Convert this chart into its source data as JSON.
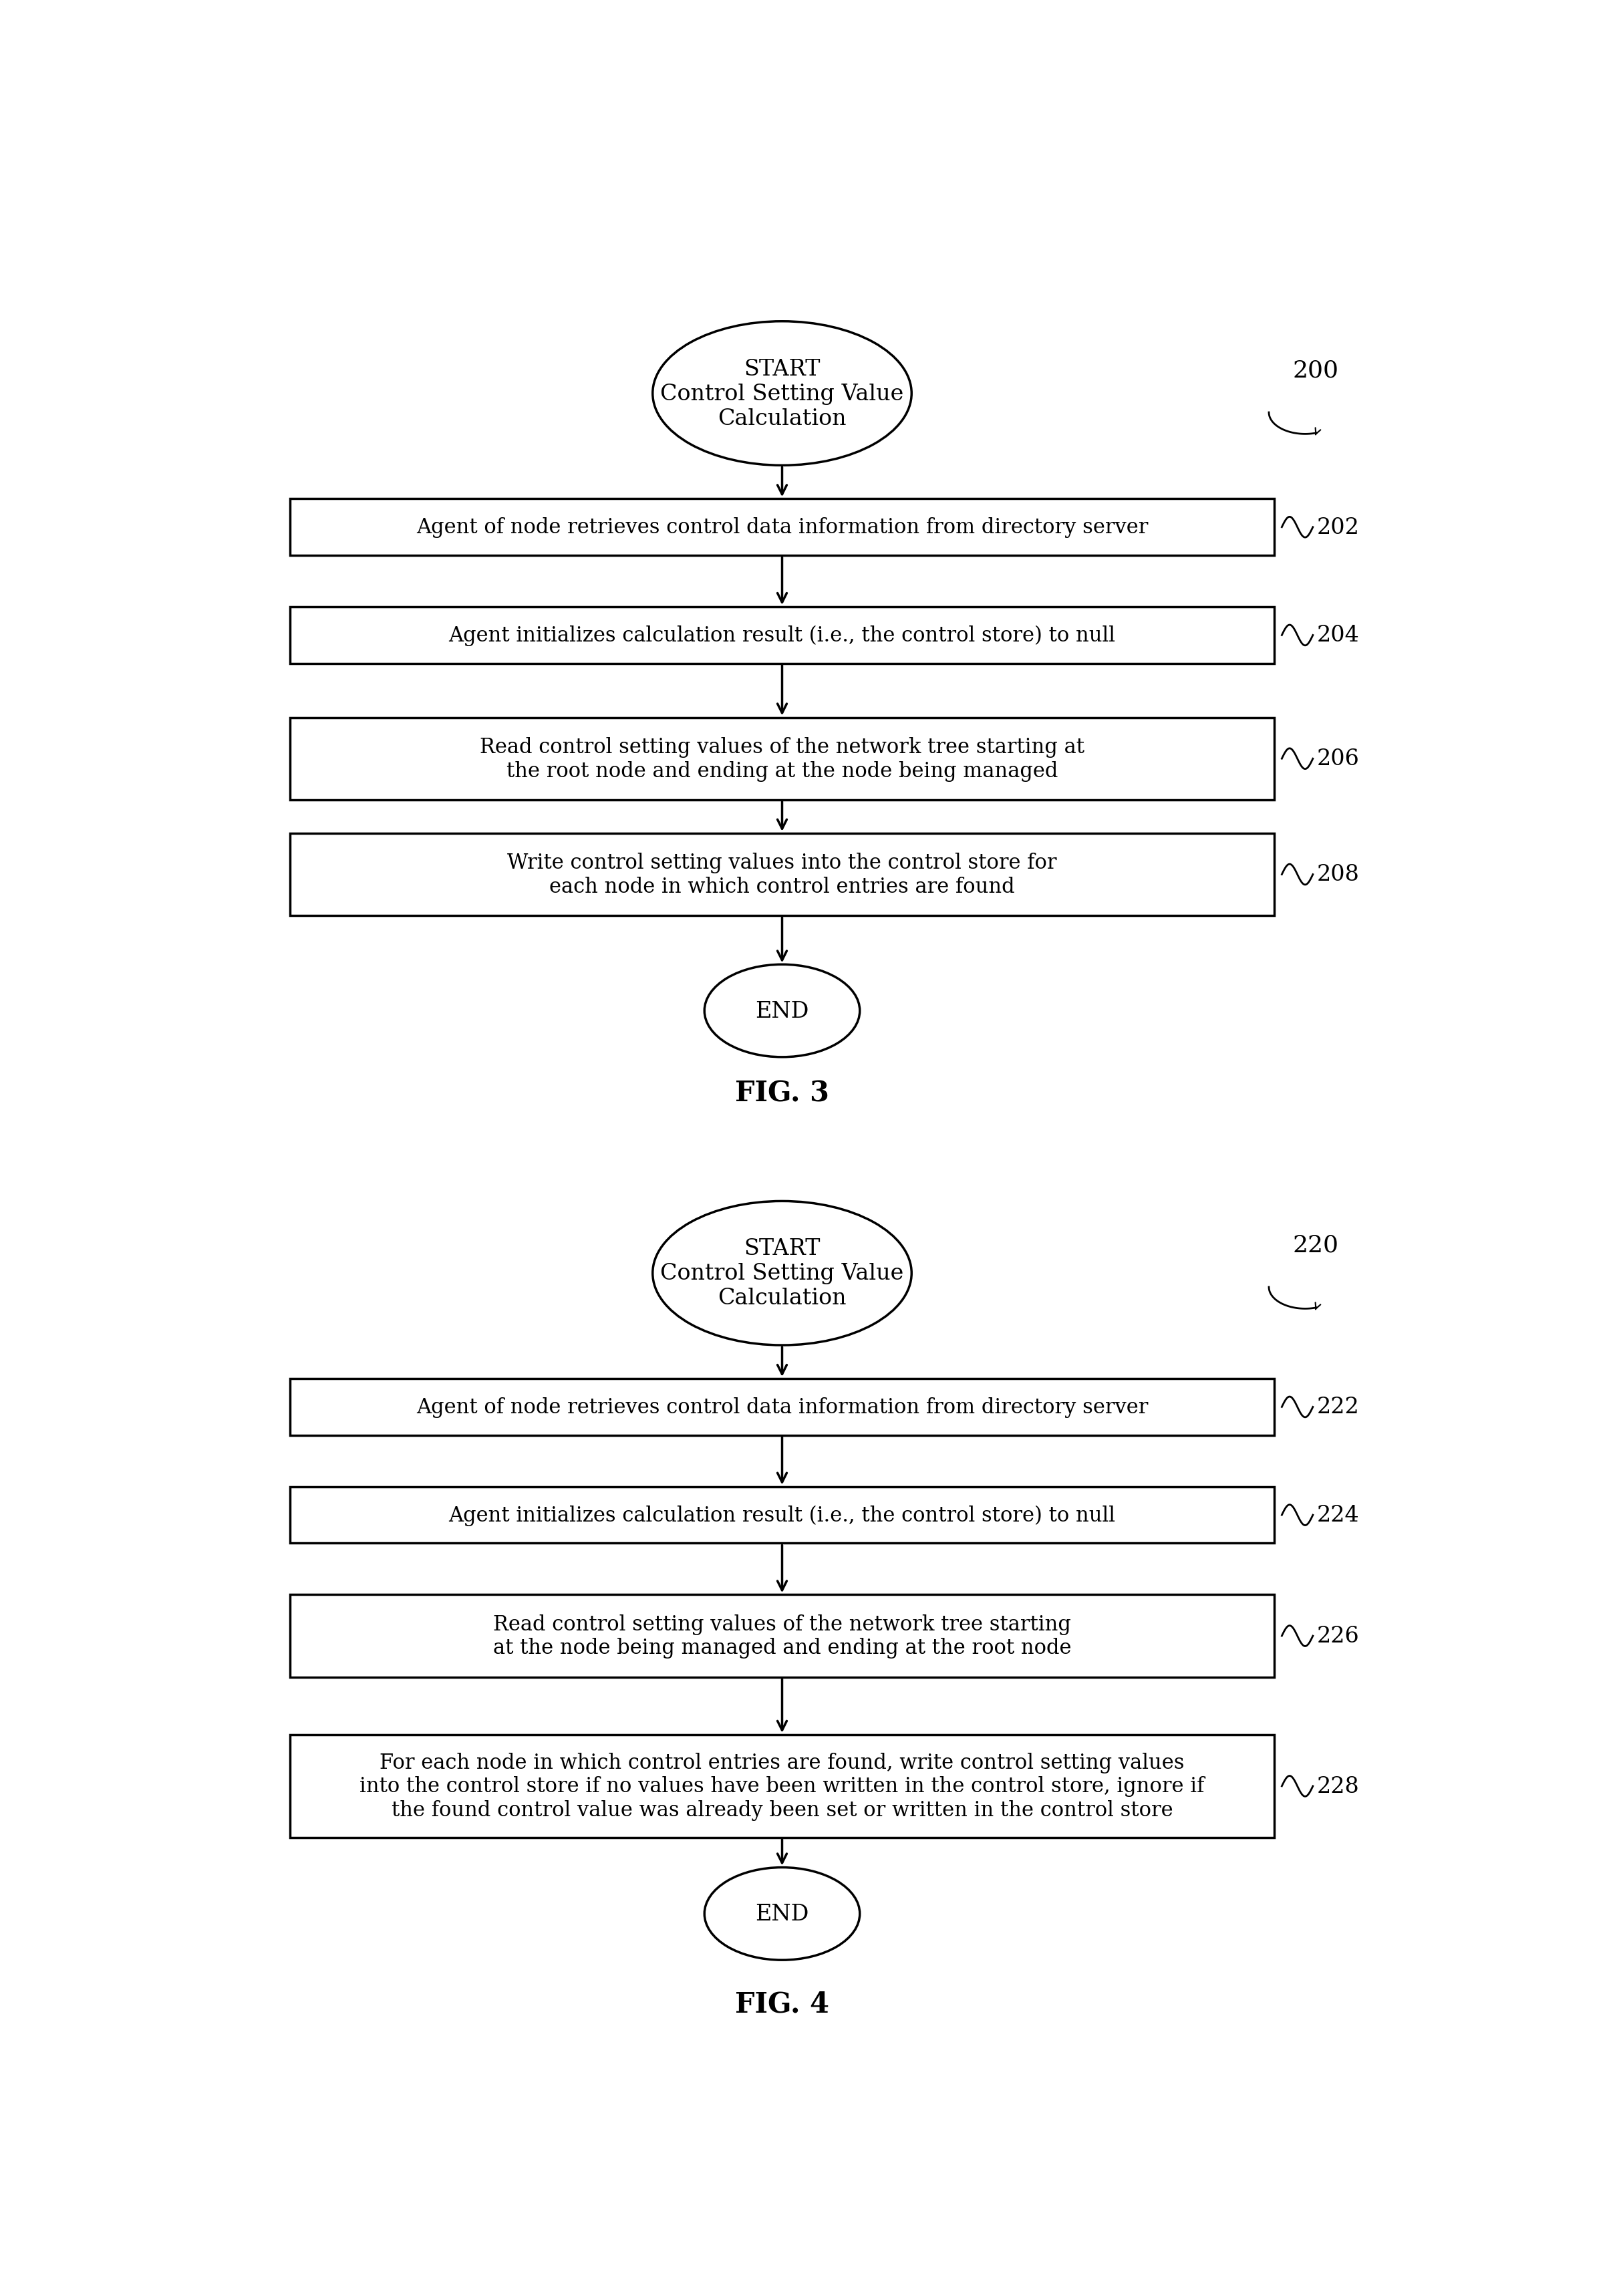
{
  "fig3": {
    "diagram_label": "200",
    "fig_label": "FIG. 3",
    "start_text": "START\nControl Setting Value\nCalculation",
    "end_text": "END",
    "boxes": [
      {
        "text": "Agent of node retrieves control data information from directory server",
        "label": "202",
        "lines": 1
      },
      {
        "text": "Agent initializes calculation result (i.e., the control store) to null",
        "label": "204",
        "lines": 1
      },
      {
        "text": "Read control setting values of the network tree starting at\nthe root node and ending at the node being managed",
        "label": "206",
        "lines": 2
      },
      {
        "text": "Write control setting values into the control store for\neach node in which control entries are found",
        "label": "208",
        "lines": 2
      }
    ]
  },
  "fig4": {
    "diagram_label": "220",
    "fig_label": "FIG. 4",
    "start_text": "START\nControl Setting Value\nCalculation",
    "end_text": "END",
    "boxes": [
      {
        "text": "Agent of node retrieves control data information from directory server",
        "label": "222",
        "lines": 1
      },
      {
        "text": "Agent initializes calculation result (i.e., the control store) to null",
        "label": "224",
        "lines": 1
      },
      {
        "text": "Read control setting values of the network tree starting\nat the node being managed and ending at the root node",
        "label": "226",
        "lines": 2
      },
      {
        "text": "For each node in which control entries are found, write control setting values\ninto the control store if no values have been written in the control store, ignore if\nthe found control value was already been set or written in the control store",
        "label": "228",
        "lines": 3
      }
    ]
  },
  "bg": "#ffffff",
  "edge_color": "#000000",
  "text_color": "#000000",
  "lw": 2.5,
  "font_size": 22,
  "label_font_size": 24,
  "fig_label_font_size": 30
}
